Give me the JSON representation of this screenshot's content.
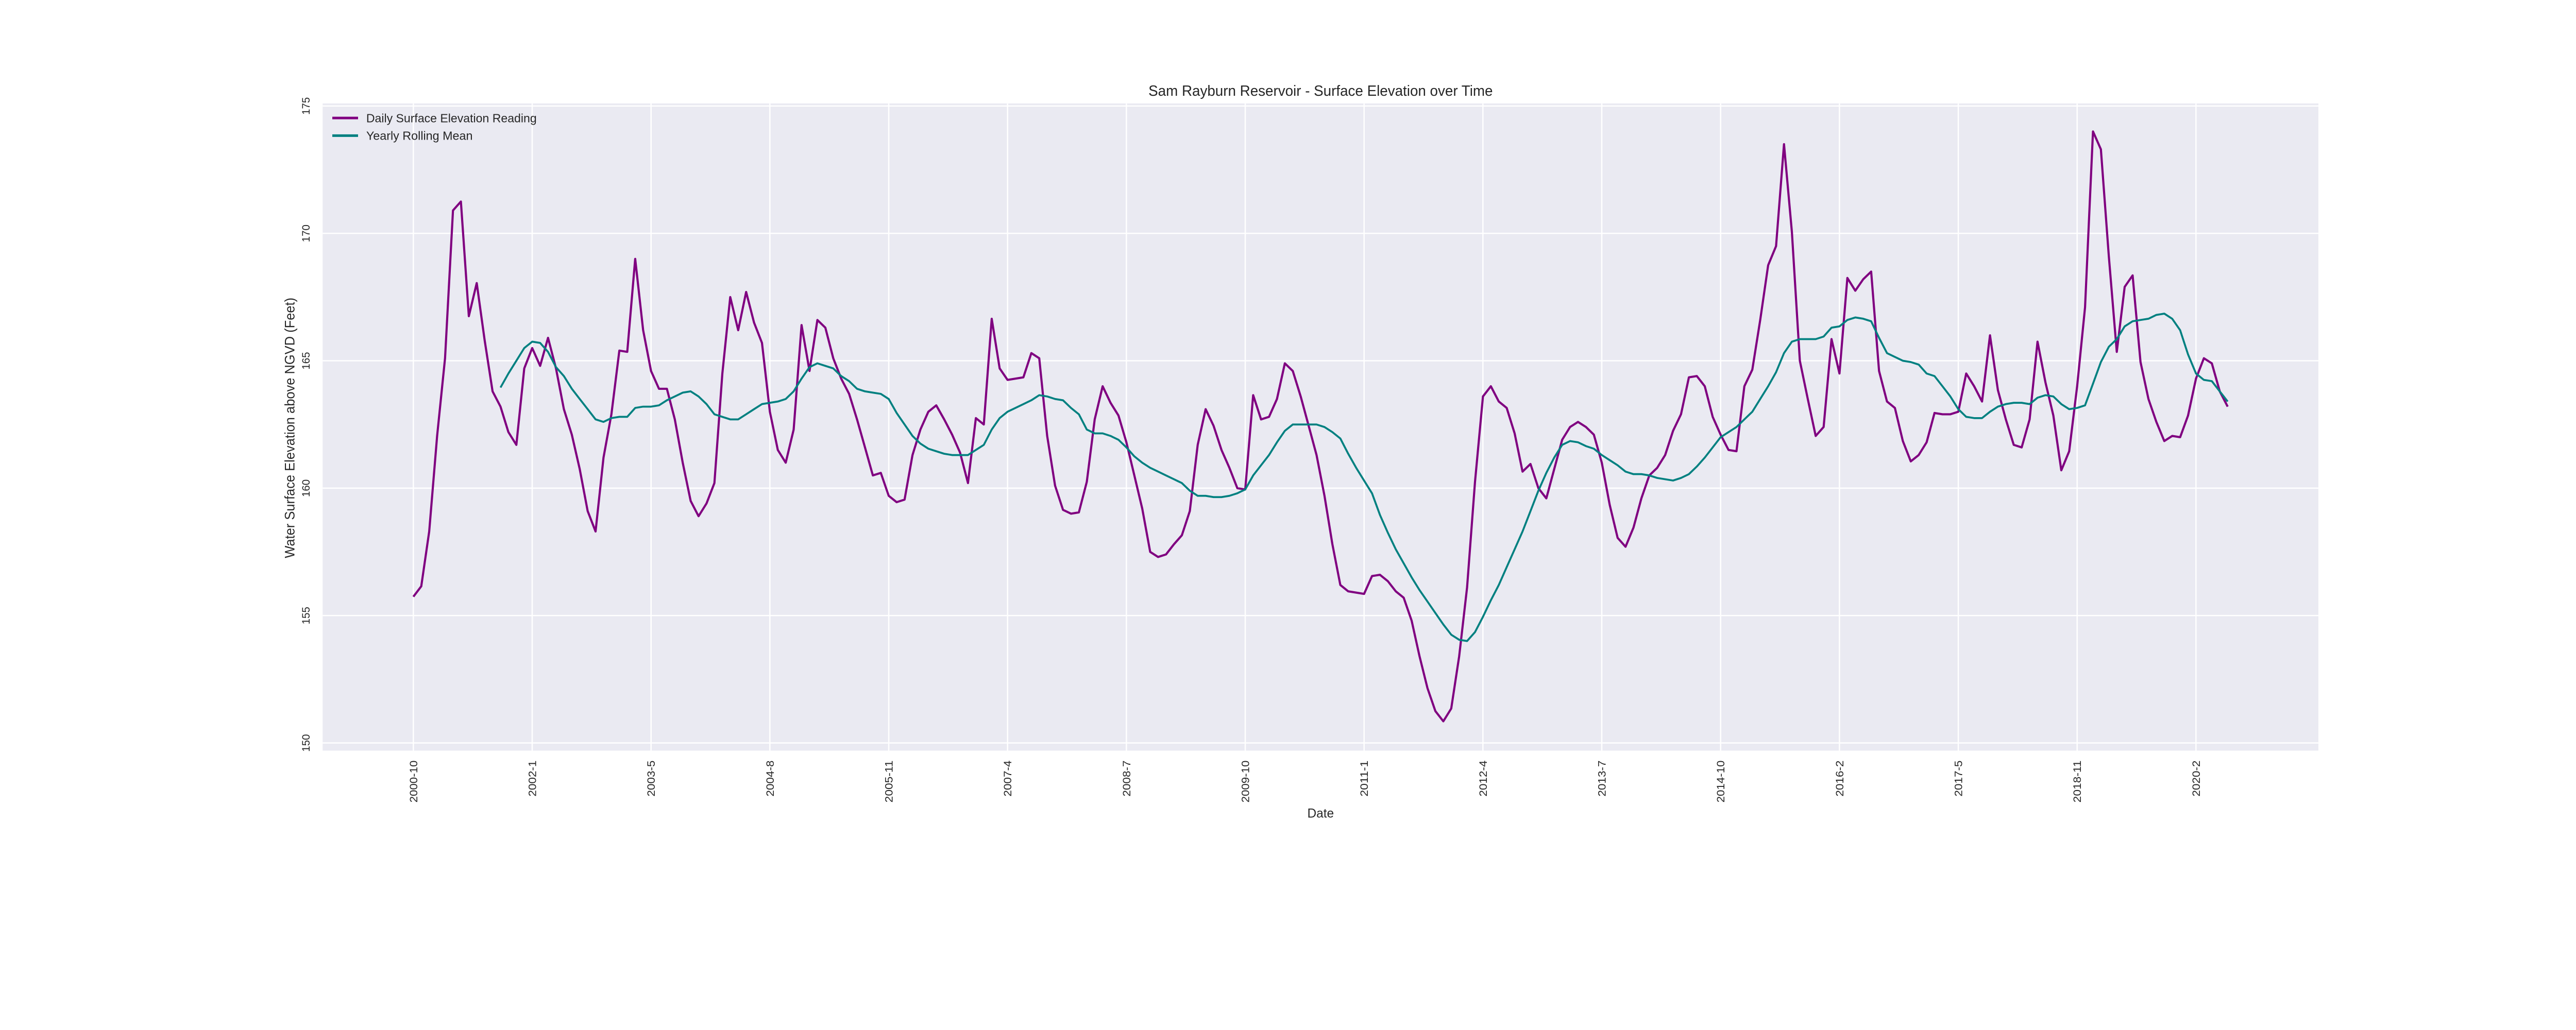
{
  "chart_data": {
    "type": "line",
    "title": "Sam Rayburn Reservoir - Surface Elevation over Time",
    "xlabel": "Date",
    "ylabel": "Water Surface Elevation above NGVD (Feet)",
    "x_ticks": {
      "positions": [
        0,
        15,
        30,
        45,
        60,
        75,
        90,
        105,
        120,
        135,
        150,
        165,
        180,
        195,
        210,
        225
      ],
      "labels": [
        "2000-10",
        "2002-1",
        "2003-5",
        "2004-8",
        "2005-11",
        "2007-4",
        "2008-7",
        "2009-10",
        "2011-1",
        "2012-4",
        "2013-7",
        "2014-10",
        "2016-2",
        "2017-5",
        "2018-11",
        "2020-2"
      ]
    },
    "y_ticks": [
      "150",
      "155",
      "160",
      "165",
      "170",
      "175"
    ],
    "xlim": [
      -11.45,
      240.45
    ],
    "ylim": [
      149.7,
      175.1
    ],
    "grid": true,
    "legend_position": "top-left",
    "series": [
      {
        "name": "Daily Surface Elevation Reading",
        "color": "#800080",
        "values": [
          155.74,
          156.15,
          158.3,
          162.06,
          165.1,
          170.9,
          171.25,
          166.75,
          168.05,
          165.8,
          163.8,
          163.2,
          162.2,
          161.7,
          164.7,
          165.5,
          164.8,
          165.9,
          164.7,
          163.1,
          162.1,
          160.75,
          159.1,
          158.3,
          161.2,
          162.9,
          165.4,
          165.35,
          169.0,
          166.2,
          164.6,
          163.9,
          163.9,
          162.7,
          161.0,
          159.5,
          158.9,
          159.4,
          160.2,
          164.5,
          167.5,
          166.2,
          167.7,
          166.5,
          165.7,
          163.0,
          161.5,
          161.0,
          162.3,
          166.4,
          164.6,
          166.6,
          166.3,
          165.1,
          164.3,
          163.7,
          162.7,
          161.6,
          160.5,
          160.6,
          159.7,
          159.45,
          159.55,
          161.3,
          162.3,
          163.0,
          163.25,
          162.7,
          162.1,
          161.4,
          160.2,
          162.75,
          162.5,
          166.65,
          164.7,
          164.25,
          164.3,
          164.35,
          165.3,
          165.1,
          162.05,
          160.1,
          159.15,
          159.0,
          159.05,
          160.25,
          162.7,
          164.0,
          163.35,
          162.85,
          161.8,
          160.5,
          159.2,
          157.5,
          157.3,
          157.4,
          157.8,
          158.15,
          159.1,
          161.7,
          163.1,
          162.45,
          161.5,
          160.8,
          160.0,
          159.95,
          163.65,
          162.7,
          162.8,
          163.5,
          164.9,
          164.6,
          163.6,
          162.45,
          161.3,
          159.7,
          157.8,
          156.2,
          155.95,
          155.9,
          155.85,
          156.55,
          156.6,
          156.35,
          155.95,
          155.7,
          154.8,
          153.4,
          152.15,
          151.25,
          150.85,
          151.35,
          153.4,
          156.1,
          160.25,
          163.6,
          164.0,
          163.4,
          163.15,
          162.15,
          160.65,
          160.95,
          160.0,
          159.6,
          160.75,
          161.9,
          162.4,
          162.6,
          162.4,
          162.1,
          161.0,
          159.35,
          158.05,
          157.7,
          158.45,
          159.6,
          160.5,
          160.8,
          161.3,
          162.25,
          162.9,
          164.35,
          164.4,
          164.0,
          162.8,
          162.1,
          161.5,
          161.45,
          164.0,
          164.65,
          166.6,
          168.75,
          169.5,
          173.5,
          170.05,
          165.0,
          163.5,
          162.05,
          162.4,
          165.85,
          164.5,
          168.25,
          167.75,
          168.2,
          168.5,
          164.6,
          163.4,
          163.15,
          161.85,
          161.05,
          161.3,
          161.8,
          162.95,
          162.9,
          162.9,
          163.0,
          164.5,
          164.0,
          163.4,
          166.0,
          163.85,
          162.7,
          161.7,
          161.6,
          162.7,
          165.75,
          164.15,
          162.85,
          160.7,
          161.45,
          164.0,
          167.1,
          174.0,
          173.3,
          169.1,
          165.35,
          167.9,
          168.35,
          164.95,
          163.5,
          162.6,
          161.85,
          162.05,
          162.0,
          162.85,
          164.3,
          165.1,
          164.9,
          163.8,
          163.2
        ]
      },
      {
        "name": "Yearly Rolling Mean",
        "color": "#008080",
        "values": [
          null,
          null,
          null,
          null,
          null,
          null,
          null,
          null,
          null,
          null,
          null,
          163.95,
          164.5,
          165.0,
          165.5,
          165.75,
          165.7,
          165.35,
          164.75,
          164.4,
          163.9,
          163.5,
          163.1,
          162.7,
          162.6,
          162.75,
          162.8,
          162.8,
          163.15,
          163.2,
          163.2,
          163.25,
          163.45,
          163.6,
          163.75,
          163.8,
          163.6,
          163.3,
          162.9,
          162.8,
          162.7,
          162.7,
          162.9,
          163.1,
          163.3,
          163.35,
          163.4,
          163.5,
          163.8,
          164.3,
          164.75,
          164.9,
          164.8,
          164.7,
          164.4,
          164.2,
          163.9,
          163.8,
          163.75,
          163.7,
          163.5,
          162.95,
          162.5,
          162.05,
          161.75,
          161.55,
          161.45,
          161.35,
          161.3,
          161.3,
          161.3,
          161.5,
          161.7,
          162.3,
          162.75,
          163.0,
          163.15,
          163.3,
          163.45,
          163.65,
          163.6,
          163.5,
          163.45,
          163.15,
          162.9,
          162.3,
          162.15,
          162.15,
          162.05,
          161.9,
          161.6,
          161.25,
          161.0,
          160.8,
          160.65,
          160.5,
          160.35,
          160.2,
          159.9,
          159.7,
          159.7,
          159.65,
          159.65,
          159.7,
          159.8,
          159.95,
          160.5,
          160.9,
          161.3,
          161.8,
          162.25,
          162.5,
          162.5,
          162.5,
          162.5,
          162.4,
          162.2,
          161.95,
          161.35,
          160.8,
          160.3,
          159.8,
          158.95,
          158.25,
          157.6,
          157.05,
          156.5,
          156.0,
          155.55,
          155.1,
          154.65,
          154.25,
          154.05,
          154.0,
          154.35,
          154.95,
          155.6,
          156.2,
          156.9,
          157.6,
          158.3,
          159.1,
          159.9,
          160.6,
          161.2,
          161.7,
          161.85,
          161.8,
          161.65,
          161.55,
          161.3,
          161.1,
          160.9,
          160.65,
          160.55,
          160.55,
          160.5,
          160.4,
          160.35,
          160.3,
          160.4,
          160.55,
          160.85,
          161.2,
          161.6,
          162.0,
          162.2,
          162.4,
          162.7,
          163.0,
          163.5,
          164.0,
          164.55,
          165.3,
          165.75,
          165.85,
          165.85,
          165.85,
          165.95,
          166.3,
          166.35,
          166.6,
          166.7,
          166.65,
          166.55,
          165.9,
          165.3,
          165.15,
          165.0,
          164.95,
          164.85,
          164.5,
          164.4,
          164.0,
          163.6,
          163.1,
          162.8,
          162.75,
          162.75,
          163.0,
          163.2,
          163.3,
          163.35,
          163.35,
          163.3,
          163.55,
          163.65,
          163.6,
          163.3,
          163.1,
          163.15,
          163.25,
          164.1,
          164.95,
          165.55,
          165.85,
          166.35,
          166.55,
          166.6,
          166.65,
          166.8,
          166.85,
          166.65,
          166.2,
          165.25,
          164.5,
          164.25,
          164.2,
          163.8,
          163.4
        ]
      }
    ],
    "colors": {
      "plot_background": "#EAEAF2",
      "grid": "#FFFFFF"
    }
  }
}
